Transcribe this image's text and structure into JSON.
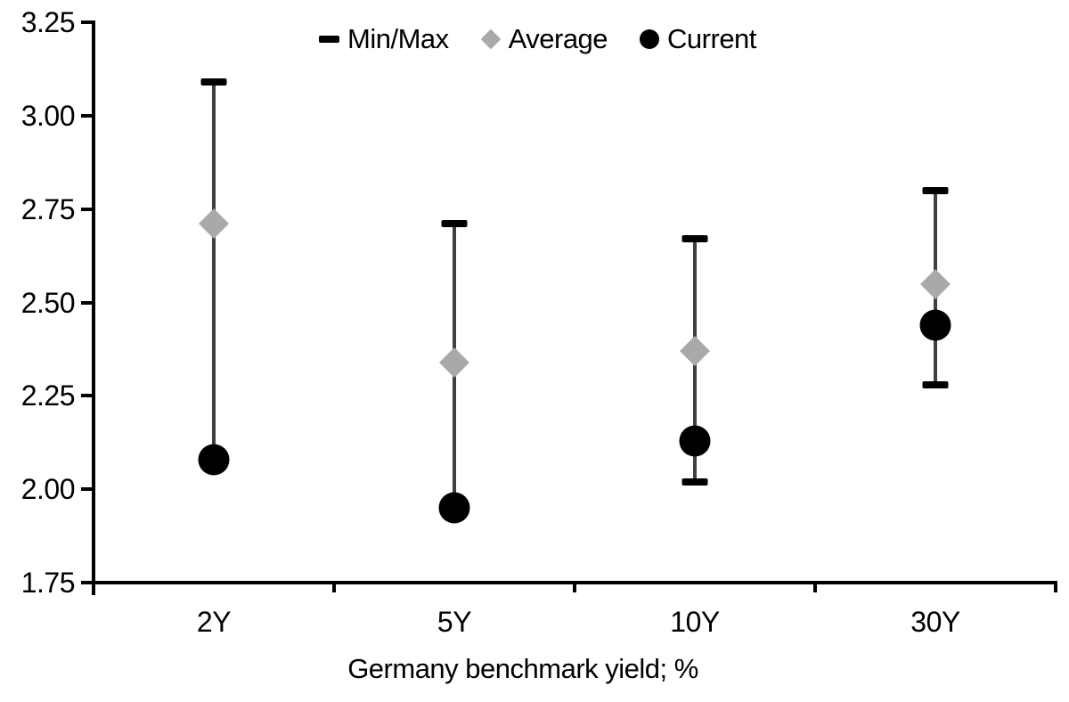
{
  "chart_data": {
    "type": "scatter",
    "subtype": "min-max-range-plot",
    "title": "",
    "xlabel": "Germany benchmark yield; %",
    "ylabel": "",
    "categories": [
      "2Y",
      "5Y",
      "10Y",
      "30Y"
    ],
    "series": [
      {
        "name": "Min/Max",
        "role": "range",
        "min": [
          2.08,
          1.95,
          2.02,
          2.28
        ],
        "max": [
          3.09,
          2.71,
          2.67,
          2.8
        ]
      },
      {
        "name": "Average",
        "role": "point",
        "marker": "diamond",
        "values": [
          2.71,
          2.34,
          2.37,
          2.55
        ]
      },
      {
        "name": "Current",
        "role": "point",
        "marker": "circle",
        "values": [
          2.08,
          1.95,
          2.13,
          2.44
        ]
      }
    ],
    "ylim": [
      1.75,
      3.25
    ],
    "yticks": [
      3.25,
      3.0,
      2.75,
      2.5,
      2.25,
      2.0,
      1.75
    ],
    "ytick_labels": [
      "3.25",
      "3.00",
      "2.75",
      "2.50",
      "2.25",
      "2.00",
      "1.75"
    ],
    "grid": false,
    "legend_position": "top-center",
    "legend": [
      "Min/Max",
      "Average",
      "Current"
    ],
    "colors": {
      "axis": "#000000",
      "text": "#000000",
      "range_line": "#404040",
      "minmax_cap": "#000000",
      "average_marker": "#a9a9a9",
      "current_marker": "#000000",
      "background": "#ffffff"
    }
  }
}
